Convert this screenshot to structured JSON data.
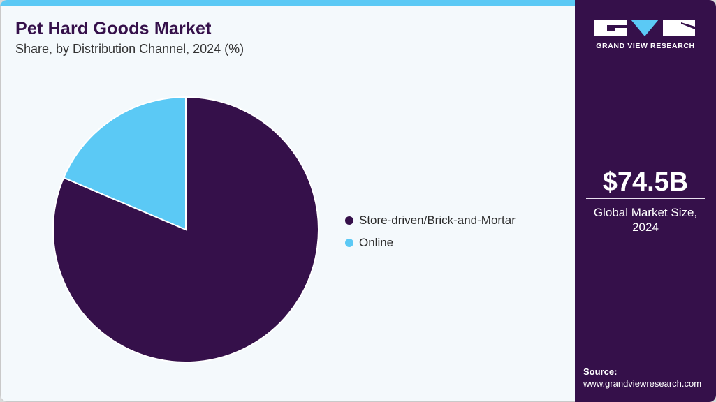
{
  "header": {
    "title": "Pet Hard Goods Market",
    "subtitle": "Share, by Distribution Channel, 2024 (%)"
  },
  "colors": {
    "accent_bar": "#5bc9f5",
    "panel_bg": "#35104a",
    "chart_bg": "#f4f9fc",
    "store": "#35104a",
    "online": "#5bc9f5"
  },
  "chart_data": {
    "type": "pie",
    "title": "Pet Hard Goods Market",
    "subtitle": "Share, by Distribution Channel, 2024 (%)",
    "categories": [
      "Store-driven/Brick-and-Mortar",
      "Online"
    ],
    "values": [
      81.4,
      18.6
    ],
    "colors": [
      "#35104a",
      "#5bc9f5"
    ],
    "start_angle": "12 o'clock",
    "direction": "clockwise",
    "legend_position": "right",
    "data_labels": false
  },
  "legend": {
    "items": [
      {
        "label": "Store-driven/Brick-and-Mortar",
        "color": "#35104a"
      },
      {
        "label": "Online",
        "color": "#5bc9f5"
      }
    ]
  },
  "sidebar": {
    "logo_text": "GRAND VIEW RESEARCH",
    "market_size": "$74.5B",
    "market_label_line1": "Global Market Size,",
    "market_label_line2": "2024",
    "source_label": "Source:",
    "source_url": "www.grandviewresearch.com"
  }
}
